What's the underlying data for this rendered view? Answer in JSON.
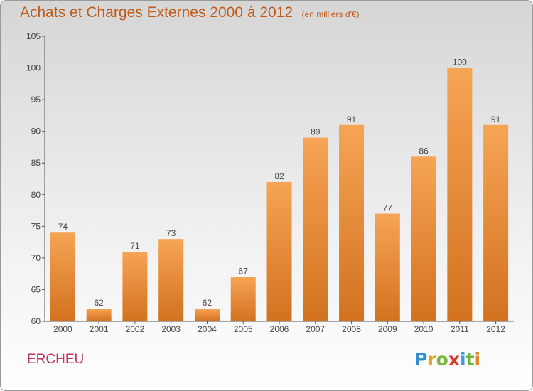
{
  "title": "Achats et Charges Externes 2000 à 2012",
  "subtitle": "(en milliers d'€)",
  "commune": "ERCHEU",
  "logo": {
    "letters": [
      "P",
      "r",
      "o",
      "x",
      "i",
      "t",
      "i"
    ],
    "colors": [
      "#2d8fd0",
      "#e4a326",
      "#7cb841",
      "#d63a2c",
      "#3f9bd8",
      "#6db33f",
      "#e08a2c"
    ]
  },
  "colors": {
    "bar_light": "#f6a455",
    "bar_dark": "#d2721f",
    "title": "#bf5a19",
    "commune": "#c0365f"
  },
  "chart_data": {
    "type": "bar",
    "title": "Achats et Charges Externes 2000 à 2012",
    "subtitle": "(en milliers d'€)",
    "categories": [
      "2000",
      "2001",
      "2002",
      "2003",
      "2004",
      "2005",
      "2006",
      "2007",
      "2008",
      "2009",
      "2010",
      "2011",
      "2012"
    ],
    "values": [
      74,
      62,
      71,
      73,
      62,
      67,
      82,
      89,
      91,
      77,
      86,
      100,
      91
    ],
    "ylim": [
      60,
      105
    ],
    "yticks": [
      60,
      65,
      70,
      75,
      80,
      85,
      90,
      95,
      100,
      105
    ],
    "grid": false,
    "data_labels": true
  }
}
